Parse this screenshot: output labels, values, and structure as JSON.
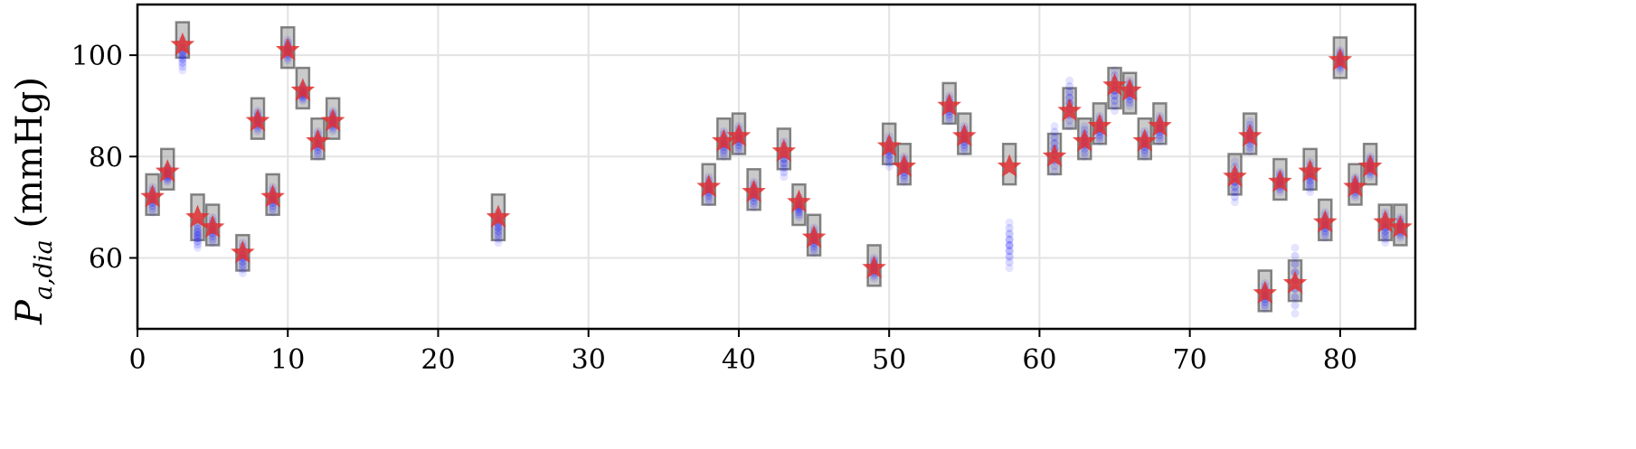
{
  "chart_data": {
    "type": "scatter",
    "ylabel": {
      "symbol": "P",
      "subscript": "a,dia",
      "unit": "(mmHg)"
    },
    "xlim": [
      0,
      85
    ],
    "ylim": [
      46,
      110
    ],
    "x_ticks": [
      0,
      10,
      20,
      30,
      40,
      50,
      60,
      70,
      80
    ],
    "y_ticks": [
      60,
      80,
      100
    ],
    "grid": true,
    "colors": {
      "box_fill": "#9e9e9e",
      "box_edge": "#555555",
      "samples": "#1f1fff",
      "star": "#e03030",
      "grid": "#e3e3e3"
    },
    "series": [
      {
        "marker": "star",
        "x": [
          1,
          2,
          3,
          4,
          5,
          7,
          8,
          9,
          10,
          11,
          12,
          13,
          24,
          38,
          39,
          40,
          41,
          43,
          44,
          45,
          49,
          50,
          51,
          54,
          55,
          58,
          61,
          62,
          63,
          64,
          65,
          66,
          67,
          68,
          73,
          74,
          75,
          76,
          77,
          78,
          79,
          80,
          81,
          82,
          83,
          84
        ],
        "y": [
          72,
          77,
          102,
          68,
          66,
          61,
          87,
          72,
          101,
          93,
          83,
          87,
          68,
          74,
          83,
          84,
          73,
          81,
          71,
          64,
          58,
          82,
          78,
          90,
          84,
          78,
          80,
          89,
          83,
          86,
          94,
          93,
          83,
          86,
          76,
          84,
          53,
          75,
          55,
          77,
          67,
          99,
          74,
          78,
          67,
          66
        ]
      },
      {
        "marker": "box",
        "x": [
          1,
          2,
          3,
          4,
          5,
          7,
          8,
          9,
          10,
          11,
          12,
          13,
          24,
          38,
          39,
          40,
          41,
          43,
          44,
          45,
          49,
          50,
          51,
          54,
          55,
          58,
          61,
          62,
          63,
          64,
          65,
          66,
          67,
          68,
          73,
          74,
          75,
          76,
          77,
          78,
          79,
          80,
          81,
          82,
          83,
          84
        ],
        "y_low": [
          68.5,
          73.5,
          99.5,
          63.5,
          62.5,
          57.5,
          83.5,
          68.5,
          97.5,
          89.5,
          79.5,
          83.5,
          63.5,
          70.5,
          79.5,
          80.5,
          69.5,
          77.5,
          66.5,
          60.5,
          54.5,
          78.5,
          74.5,
          86.5,
          80.5,
          74.5,
          76.5,
          85.5,
          79.5,
          82.5,
          89.5,
          88.5,
          79.5,
          82.5,
          72.5,
          80.5,
          49.5,
          71.5,
          51.5,
          73.5,
          63.5,
          95.5,
          70.5,
          74.5,
          63.5,
          62.5
        ],
        "y_high": [
          76.5,
          81.5,
          106.5,
          72.5,
          70.5,
          64.5,
          91.5,
          76.5,
          105.5,
          97.5,
          87.5,
          91.5,
          72.5,
          78.5,
          87.5,
          88.5,
          77.5,
          85.5,
          74.5,
          68.5,
          62.5,
          86.5,
          82.5,
          94.5,
          88.5,
          82.5,
          84.5,
          93.5,
          87.5,
          90.5,
          97.5,
          96.5,
          87.5,
          90.5,
          80.5,
          88.5,
          57.5,
          79.5,
          59.5,
          81.5,
          71.5,
          103.5,
          78.5,
          82.5,
          70.5,
          70.5
        ]
      },
      {
        "marker": "points",
        "x": [
          1,
          2,
          3,
          4,
          5,
          7,
          8,
          9,
          10,
          11,
          12,
          13,
          24,
          38,
          39,
          40,
          41,
          43,
          44,
          45,
          49,
          50,
          51,
          54,
          55,
          58,
          61,
          62,
          63,
          64,
          65,
          66,
          67,
          68,
          73,
          74,
          75,
          76,
          77,
          78,
          79,
          80,
          81,
          82,
          83,
          84
        ],
        "y_low": [
          69,
          75,
          97,
          62,
          63,
          57,
          85,
          69,
          99,
          91,
          80,
          85,
          63,
          71,
          80,
          81,
          70,
          76,
          68,
          61,
          56,
          78,
          75,
          87,
          81,
          58,
          77,
          86,
          80,
          83,
          89,
          90,
          80,
          83,
          71,
          81,
          50,
          73,
          49,
          73,
          64,
          97,
          72,
          76,
          63,
          64
        ],
        "y_high": [
          74,
          78,
          103,
          67,
          68,
          63,
          89,
          74,
          103,
          94,
          85,
          89,
          69,
          76,
          85,
          86,
          75,
          83,
          72,
          66,
          60,
          84,
          80,
          92,
          86,
          67,
          86,
          95,
          86,
          88,
          97,
          95,
          85,
          88,
          79,
          87,
          55,
          77,
          62,
          79,
          69,
          101,
          76,
          80,
          69,
          68
        ]
      }
    ]
  }
}
